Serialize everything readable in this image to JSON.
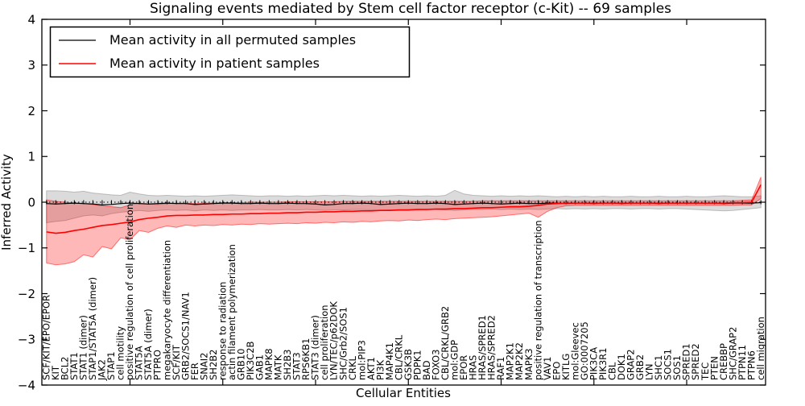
{
  "chart_data": {
    "type": "line",
    "title": "Signaling events mediated by Stem cell factor receptor (c-Kit) -- 69 samples",
    "xlabel": "Cellular Entities",
    "ylabel": "Inferred Activity",
    "ylim": [
      -4,
      4
    ],
    "yticks": [
      -4,
      -3,
      -2,
      -1,
      0,
      1,
      2,
      3,
      4
    ],
    "grid": false,
    "zero_line": {
      "value": 0,
      "style": "dotted"
    },
    "legend": {
      "position": "upper left",
      "entries": [
        {
          "label": "Mean activity in all permuted samples",
          "color": "#000000"
        },
        {
          "label": "Mean activity in patient samples",
          "color": "#ff0000"
        }
      ]
    },
    "categories": [
      "SCF/KIT/EPO/EPOR",
      "KIT",
      "BCL2",
      "STAT1",
      "STAT1 (dimer)",
      "STAP1/STAT5A (dimer)",
      "JAK2",
      "STAP1",
      "cell motility",
      "positive regulation of cell proliferation",
      "STAT5A",
      "STAT5A (dimer)",
      "PTPRO",
      "megakaryocyte differentiation",
      "SCF/KIT",
      "GRB2/SOCS1/NAV1",
      "FER",
      "SNAI2",
      "SH2B2",
      "response to radiation",
      "actin filament polymerization",
      "GRB10",
      "PIK3C2B",
      "GAB1",
      "MAPK8",
      "MATK",
      "SH2B3",
      "STAT3",
      "RPS6KB1",
      "STAT3 (dimer)",
      "cell proliferation",
      "LYN/TEC/p62DOK",
      "SHC/Grb2/SOS1",
      "CRKL",
      "mol:PIP3",
      "AKT1",
      "PI3K",
      "MAP4K1",
      "CBL/CRKL",
      "GSK3B",
      "PDPK1",
      "BAD",
      "FOXO3",
      "CBL/CRKL/GRB2",
      "mol:GDP",
      "EPOR",
      "HRAS",
      "HRAS/SPRED1",
      "HRAS/SPRED2",
      "RAF1",
      "MAP2K1",
      "MAP2K2",
      "MAPK3",
      "positive regulation of transcription",
      "VAV1",
      "EPO",
      "KITLG",
      "mol:Gleevec",
      "GO:0007205",
      "PIK3CA",
      "PIK3R1",
      "CBL",
      "DOK1",
      "GRAP2",
      "GRB2",
      "LYN",
      "SHC1",
      "SOCS1",
      "SOS1",
      "SPRED1",
      "SPRED2",
      "TEC",
      "PTEN",
      "CREBBP",
      "SHC/GRAP2",
      "PTPN11",
      "PTPN6",
      "cell migration"
    ],
    "series": [
      {
        "name": "Mean activity in all permuted samples",
        "color": "#000000",
        "line_width": 1.2,
        "band_color": "rgba(110,110,110,0.25)",
        "band_edge": "rgba(110,110,110,0.4)",
        "values": [
          -0.03,
          -0.04,
          -0.03,
          -0.02,
          -0.03,
          -0.04,
          -0.06,
          -0.05,
          -0.03,
          -0.02,
          -0.03,
          -0.04,
          -0.03,
          -0.02,
          -0.03,
          -0.03,
          -0.05,
          -0.04,
          -0.03,
          -0.02,
          -0.02,
          -0.03,
          -0.03,
          -0.02,
          -0.03,
          -0.03,
          -0.02,
          -0.03,
          -0.03,
          -0.04,
          -0.06,
          -0.05,
          -0.03,
          -0.03,
          -0.02,
          -0.03,
          -0.05,
          -0.04,
          -0.03,
          -0.02,
          -0.03,
          -0.03,
          -0.02,
          -0.03,
          -0.05,
          -0.04,
          -0.03,
          -0.02,
          -0.03,
          -0.04,
          -0.03,
          -0.02,
          -0.03,
          -0.03,
          -0.02,
          -0.02,
          -0.03,
          -0.02,
          -0.02,
          -0.03,
          -0.02,
          -0.02,
          -0.03,
          -0.02,
          -0.02,
          -0.02,
          -0.03,
          -0.02,
          -0.02,
          -0.02,
          -0.02,
          -0.02,
          -0.02,
          -0.03,
          -0.02,
          -0.02,
          -0.02,
          -0.01
        ],
        "band_upper": [
          0.25,
          0.25,
          0.24,
          0.22,
          0.24,
          0.2,
          0.18,
          0.16,
          0.15,
          0.22,
          0.18,
          0.15,
          0.14,
          0.15,
          0.14,
          0.13,
          0.14,
          0.13,
          0.14,
          0.15,
          0.16,
          0.15,
          0.14,
          0.13,
          0.14,
          0.14,
          0.13,
          0.14,
          0.13,
          0.14,
          0.15,
          0.14,
          0.15,
          0.14,
          0.13,
          0.14,
          0.13,
          0.14,
          0.15,
          0.14,
          0.13,
          0.14,
          0.13,
          0.15,
          0.26,
          0.18,
          0.15,
          0.14,
          0.13,
          0.14,
          0.13,
          0.14,
          0.13,
          0.14,
          0.13,
          0.12,
          0.13,
          0.12,
          0.13,
          0.12,
          0.13,
          0.12,
          0.12,
          0.13,
          0.12,
          0.12,
          0.13,
          0.12,
          0.12,
          0.13,
          0.12,
          0.12,
          0.13,
          0.14,
          0.13,
          0.12,
          0.12,
          0.14
        ],
        "band_lower": [
          -0.45,
          -0.42,
          -0.4,
          -0.35,
          -0.3,
          -0.28,
          -0.3,
          -0.25,
          -0.22,
          -0.2,
          -0.18,
          -0.2,
          -0.18,
          -0.17,
          -0.18,
          -0.17,
          -0.19,
          -0.17,
          -0.18,
          -0.17,
          -0.18,
          -0.17,
          -0.17,
          -0.16,
          -0.17,
          -0.17,
          -0.16,
          -0.17,
          -0.16,
          -0.17,
          -0.18,
          -0.17,
          -0.17,
          -0.16,
          -0.16,
          -0.17,
          -0.18,
          -0.17,
          -0.16,
          -0.16,
          -0.17,
          -0.16,
          -0.16,
          -0.17,
          -0.18,
          -0.17,
          -0.16,
          -0.16,
          -0.15,
          -0.16,
          -0.15,
          -0.16,
          -0.15,
          -0.16,
          -0.15,
          -0.14,
          -0.15,
          -0.14,
          -0.15,
          -0.14,
          -0.15,
          -0.14,
          -0.14,
          -0.15,
          -0.14,
          -0.14,
          -0.15,
          -0.14,
          -0.14,
          -0.15,
          -0.16,
          -0.17,
          -0.18,
          -0.19,
          -0.18,
          -0.16,
          -0.14,
          -0.12
        ]
      },
      {
        "name": "Mean activity in patient samples",
        "color": "#ff0000",
        "line_width": 1.6,
        "band_color": "rgba(255,0,0,0.28)",
        "band_edge": "rgba(255,0,0,0.5)",
        "values": [
          -0.65,
          -0.68,
          -0.66,
          -0.62,
          -0.59,
          -0.55,
          -0.51,
          -0.49,
          -0.46,
          -0.43,
          -0.38,
          -0.35,
          -0.33,
          -0.3,
          -0.29,
          -0.29,
          -0.28,
          -0.28,
          -0.27,
          -0.27,
          -0.26,
          -0.26,
          -0.25,
          -0.25,
          -0.24,
          -0.24,
          -0.23,
          -0.23,
          -0.22,
          -0.22,
          -0.21,
          -0.21,
          -0.2,
          -0.2,
          -0.19,
          -0.19,
          -0.18,
          -0.18,
          -0.17,
          -0.17,
          -0.16,
          -0.16,
          -0.15,
          -0.15,
          -0.14,
          -0.14,
          -0.13,
          -0.12,
          -0.12,
          -0.11,
          -0.1,
          -0.1,
          -0.09,
          -0.07,
          -0.04,
          -0.03,
          -0.02,
          -0.02,
          -0.02,
          -0.02,
          -0.02,
          -0.02,
          -0.02,
          -0.02,
          -0.02,
          -0.02,
          -0.02,
          -0.02,
          -0.02,
          -0.02,
          -0.02,
          -0.02,
          -0.02,
          -0.02,
          -0.01,
          -0.01,
          0.0,
          0.38
        ],
        "band_upper": [
          0.05,
          0.02,
          0.0,
          -0.02,
          -0.03,
          -0.05,
          -0.08,
          -0.1,
          -0.12,
          -0.06,
          -0.02,
          -0.04,
          -0.05,
          -0.03,
          -0.02,
          -0.02,
          -0.03,
          -0.02,
          -0.02,
          -0.01,
          -0.01,
          -0.01,
          0.0,
          0.0,
          0.0,
          0.0,
          0.01,
          0.01,
          0.01,
          0.01,
          0.01,
          0.01,
          0.02,
          0.02,
          0.02,
          0.02,
          0.02,
          0.02,
          0.02,
          0.02,
          0.02,
          0.02,
          0.02,
          0.02,
          0.02,
          0.02,
          0.02,
          0.03,
          0.03,
          0.03,
          0.03,
          0.03,
          0.03,
          0.03,
          0.03,
          0.03,
          0.03,
          0.03,
          0.03,
          0.03,
          0.03,
          0.03,
          0.03,
          0.03,
          0.03,
          0.03,
          0.03,
          0.03,
          0.03,
          0.03,
          0.03,
          0.03,
          0.03,
          0.03,
          0.03,
          0.04,
          0.05,
          0.55
        ],
        "band_lower": [
          -1.33,
          -1.37,
          -1.35,
          -1.3,
          -1.15,
          -1.2,
          -0.97,
          -1.02,
          -0.78,
          -0.82,
          -0.62,
          -0.66,
          -0.57,
          -0.52,
          -0.55,
          -0.5,
          -0.52,
          -0.5,
          -0.51,
          -0.49,
          -0.5,
          -0.48,
          -0.49,
          -0.47,
          -0.48,
          -0.47,
          -0.46,
          -0.47,
          -0.45,
          -0.46,
          -0.44,
          -0.45,
          -0.43,
          -0.44,
          -0.42,
          -0.43,
          -0.41,
          -0.4,
          -0.41,
          -0.39,
          -0.4,
          -0.38,
          -0.37,
          -0.38,
          -0.36,
          -0.35,
          -0.34,
          -0.33,
          -0.32,
          -0.3,
          -0.28,
          -0.26,
          -0.24,
          -0.33,
          -0.2,
          -0.12,
          -0.08,
          -0.07,
          -0.07,
          -0.07,
          -0.07,
          -0.07,
          -0.07,
          -0.07,
          -0.07,
          -0.07,
          -0.07,
          -0.07,
          -0.07,
          -0.07,
          -0.07,
          -0.07,
          -0.07,
          -0.07,
          -0.07,
          -0.06,
          -0.06,
          0.08
        ]
      }
    ]
  }
}
